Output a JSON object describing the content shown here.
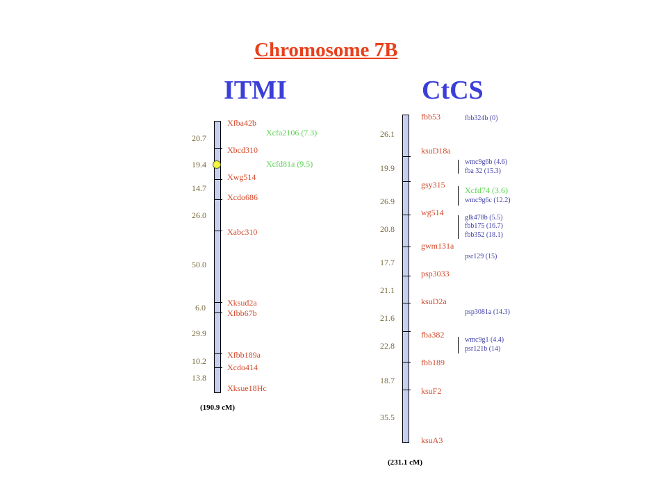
{
  "title": "Chromosome 7B",
  "itmi": {
    "heading": "ITMI",
    "markers": [
      "Xfba42b",
      "Xbcd310",
      "Xwg514",
      "Xcdo686",
      "Xabc310",
      "Xksud2a",
      "Xfbb67b",
      "Xfbb189a",
      "Xcdo414",
      "Xksue18Hc"
    ],
    "ssr_markers": [
      "Xcfa2106 (7.3)",
      "Xcfd81a (9.5)"
    ],
    "distances": [
      "20.7",
      "19.4",
      "14.7",
      "26.0",
      "50.0",
      "6.0",
      "29.9",
      "10.2",
      "13.8"
    ],
    "total": "(190.9 cM)"
  },
  "ctcs": {
    "heading": "CtCS",
    "markers": [
      "fbb53",
      "ksuD18a",
      "gsy315",
      "wg514",
      "gwm131a",
      "psp3033",
      "ksuD2a",
      "fba382",
      "fbb189",
      "ksuF2",
      "ksuA3"
    ],
    "distances": [
      "26.1",
      "19.9",
      "26.9",
      "20.8",
      "17.7",
      "21.1",
      "21.6",
      "22.8",
      "18.7",
      "35.5"
    ],
    "side_markers": [
      "fbb324b (0)",
      "wmc9g6b (4.6)",
      "fba 32 (15.3)",
      "Xcfd74 (3.6)",
      "wmc9g6c (12.2)",
      "glk478b (5.5)",
      "fbb175 (16.7)",
      "fbb352 (18.1)",
      "psr129 (15)",
      "psp3081a (14.3)",
      "wmc9g1 (4.4)",
      "psr121b (14)"
    ],
    "total": "(231.1 cM)"
  },
  "colors": {
    "title": "#e8401c",
    "heading": "#3b3fd8",
    "marker": "#d2492a",
    "distance": "#7a6a3e",
    "ssr": "#5bd451",
    "side_marker": "#4040a8",
    "chromosome_fill": "#c6cfee",
    "centromere": "#f5f540"
  }
}
